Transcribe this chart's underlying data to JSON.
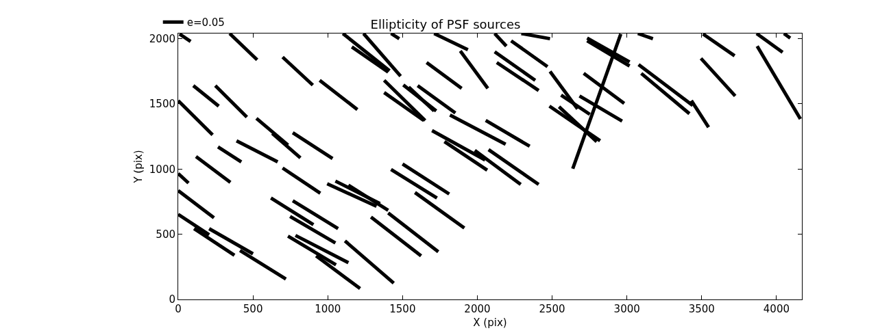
{
  "chart_data": {
    "type": "line",
    "title": "Ellipticity of PSF sources",
    "xlabel": "X (pix)",
    "ylabel": "Y (pix)",
    "xlim": [
      0,
      4170
    ],
    "ylim": [
      0,
      2040
    ],
    "xticks": [
      0,
      500,
      1000,
      1500,
      2000,
      2500,
      3000,
      3500,
      4000
    ],
    "yticks": [
      0,
      500,
      1000,
      1500,
      2000
    ],
    "legend": "top left",
    "marker": "none",
    "line_style": "solid",
    "series": [
      {
        "name": "e=0.05",
        "color": "#000000",
        "x": [
          9,
          83
        ],
        "values": [
          2036,
          1979
        ]
      },
      {
        "color": "#000000",
        "x": [
          344,
          528
        ],
        "values": [
          2040,
          1838
        ]
      },
      {
        "color": "#000000",
        "x": [
          698,
          900
        ],
        "values": [
          1859,
          1644
        ]
      },
      {
        "color": "#000000",
        "x": [
          946,
          1198
        ],
        "values": [
          1681,
          1457
        ]
      },
      {
        "color": "#000000",
        "x": [
          101,
          271
        ],
        "values": [
          1640,
          1483
        ]
      },
      {
        "color": "#000000",
        "x": [
          248,
          459
        ],
        "values": [
          1640,
          1399
        ]
      },
      {
        "color": "#000000",
        "x": [
          0,
          230
        ],
        "values": [
          1525,
          1263
        ]
      },
      {
        "color": "#000000",
        "x": [
          523,
          734
        ],
        "values": [
          1389,
          1185
        ]
      },
      {
        "color": "#000000",
        "x": [
          629,
          817
        ],
        "values": [
          1274,
          1086
        ]
      },
      {
        "color": "#000000",
        "x": [
          766,
          1032
        ],
        "values": [
          1279,
          1081
        ]
      },
      {
        "color": "#000000",
        "x": [
          390,
          665
        ],
        "values": [
          1217,
          1055
        ]
      },
      {
        "color": "#000000",
        "x": [
          266,
          422
        ],
        "values": [
          1170,
          1055
        ]
      },
      {
        "color": "#000000",
        "x": [
          119,
          349
        ],
        "values": [
          1096,
          898
        ]
      },
      {
        "color": "#000000",
        "x": [
          0,
          69
        ],
        "values": [
          966,
          893
        ]
      },
      {
        "color": "#000000",
        "x": [
          698,
          950
        ],
        "values": [
          1008,
          815
        ]
      },
      {
        "color": "#000000",
        "x": [
          0,
          239
        ],
        "values": [
          835,
          627
        ]
      },
      {
        "color": "#000000",
        "x": [
          0,
          207
        ],
        "values": [
          653,
          496
        ]
      },
      {
        "color": "#000000",
        "x": [
          106,
          376
        ],
        "values": [
          543,
          339
        ]
      },
      {
        "color": "#000000",
        "x": [
          207,
          500
        ],
        "values": [
          543,
          350
        ]
      },
      {
        "color": "#000000",
        "x": [
          413,
          720
        ],
        "values": [
          376,
          157
        ]
      },
      {
        "color": "#000000",
        "x": [
          620,
          904
        ],
        "values": [
          778,
          574
        ]
      },
      {
        "color": "#000000",
        "x": [
          766,
          1069
        ],
        "values": [
          757,
          543
        ]
      },
      {
        "color": "#000000",
        "x": [
          748,
          1051
        ],
        "values": [
          637,
          433
        ]
      },
      {
        "color": "#000000",
        "x": [
          734,
          1055
        ],
        "values": [
          486,
          266
        ]
      },
      {
        "color": "#000000",
        "x": [
          784,
          1138
        ],
        "values": [
          491,
          282
        ]
      },
      {
        "color": "#000000",
        "x": [
          922,
          1216
        ],
        "values": [
          334,
          84
        ]
      },
      {
        "color": "#000000",
        "x": [
          1115,
          1441
        ],
        "values": [
          449,
          125
        ]
      },
      {
        "color": "#000000",
        "x": [
          1051,
          1349
        ],
        "values": [
          908,
          736
        ]
      },
      {
        "color": "#000000",
        "x": [
          996,
          1326
        ],
        "values": [
          888,
          715
        ]
      },
      {
        "color": "#000000",
        "x": [
          1138,
          1404
        ],
        "values": [
          877,
          684
        ]
      },
      {
        "color": "#000000",
        "x": [
          1289,
          1624
        ],
        "values": [
          632,
          334
        ]
      },
      {
        "color": "#000000",
        "x": [
          1404,
          1739
        ],
        "values": [
          663,
          366
        ]
      },
      {
        "color": "#000000",
        "x": [
          1423,
          1730
        ],
        "values": [
          997,
          778
        ]
      },
      {
        "color": "#000000",
        "x": [
          1500,
          1812
        ],
        "values": [
          1039,
          809
        ]
      },
      {
        "color": "#000000",
        "x": [
          1583,
          1913
        ],
        "values": [
          820,
          548
        ]
      },
      {
        "color": "#000000",
        "x": [
          1101,
          1413
        ],
        "values": [
          2040,
          1754
        ]
      },
      {
        "color": "#000000",
        "x": [
          1161,
          1404
        ],
        "values": [
          1937,
          1744
        ]
      },
      {
        "color": "#000000",
        "x": [
          1239,
          1487
        ],
        "values": [
          2040,
          1713
        ]
      },
      {
        "color": "#000000",
        "x": [
          1377,
          1651
        ],
        "values": [
          1681,
          1373
        ]
      },
      {
        "color": "#000000",
        "x": [
          1377,
          1642
        ],
        "values": [
          1587,
          1373
        ]
      },
      {
        "color": "#000000",
        "x": [
          1505,
          1725
        ],
        "values": [
          1645,
          1446
        ]
      },
      {
        "color": "#000000",
        "x": [
          1541,
          1711
        ],
        "values": [
          1629,
          1446
        ]
      },
      {
        "color": "#000000",
        "x": [
          1601,
          1853
        ],
        "values": [
          1640,
          1430
        ]
      },
      {
        "color": "#000000",
        "x": [
          1423,
          1478
        ],
        "values": [
          2040,
          2000
        ]
      },
      {
        "color": "#000000",
        "x": [
          1661,
          1895
        ],
        "values": [
          1817,
          1619
        ]
      },
      {
        "color": "#000000",
        "x": [
          1711,
          1937
        ],
        "values": [
          2040,
          1916
        ]
      },
      {
        "color": "#000000",
        "x": [
          1886,
          2070
        ],
        "values": [
          1906,
          1619
        ]
      },
      {
        "color": "#000000",
        "x": [
          1697,
          2052
        ],
        "values": [
          1295,
          1070
        ]
      },
      {
        "color": "#000000",
        "x": [
          1817,
          2189
        ],
        "values": [
          1415,
          1190
        ]
      },
      {
        "color": "#000000",
        "x": [
          1780,
          2066
        ],
        "values": [
          1211,
          992
        ]
      },
      {
        "color": "#000000",
        "x": [
          1983,
          2290
        ],
        "values": [
          1143,
          882
        ]
      },
      {
        "color": "#000000",
        "x": [
          2056,
          2350
        ],
        "values": [
          1373,
          1175
        ]
      },
      {
        "color": "#000000",
        "x": [
          2075,
          2410
        ],
        "values": [
          1149,
          882
        ]
      },
      {
        "color": "#000000",
        "x": [
          2116,
          2194
        ],
        "values": [
          2040,
          1943
        ]
      },
      {
        "color": "#000000",
        "x": [
          2116,
          2387
        ],
        "values": [
          1900,
          1681
        ]
      },
      {
        "color": "#000000",
        "x": [
          2130,
          2410
        ],
        "values": [
          1817,
          1603
        ]
      },
      {
        "color": "#000000",
        "x": [
          2226,
          2469
        ],
        "values": [
          1984,
          1786
        ]
      },
      {
        "color": "#000000",
        "x": [
          2294,
          2486
        ],
        "values": [
          2040,
          2000
        ]
      },
      {
        "color": "#000000",
        "x": [
          2486,
          2670
        ],
        "values": [
          1749,
          1462
        ]
      },
      {
        "color": "#000000",
        "x": [
          2546,
          2798
        ],
        "values": [
          1478,
          1211
        ]
      },
      {
        "color": "#000000",
        "x": [
          2482,
          2821
        ],
        "values": [
          1483,
          1217
        ]
      },
      {
        "color": "#000000",
        "x": [
          2560,
          2752
        ],
        "values": [
          1567,
          1420
        ]
      },
      {
        "color": "#000000",
        "x": [
          2711,
          2982
        ],
        "values": [
          1734,
          1504
        ]
      },
      {
        "color": "#000000",
        "x": [
          2683,
          2968
        ],
        "values": [
          1561,
          1368
        ]
      },
      {
        "color": "#000000",
        "x": [
          2734,
          3018
        ],
        "values": [
          1984,
          1791
        ]
      },
      {
        "color": "#000000",
        "x": [
          2734,
          3018
        ],
        "values": [
          2005,
          1822
        ]
      },
      {
        "color": "#000000",
        "x": [
          2638,
          2959
        ],
        "values": [
          1003,
          2036
        ]
      },
      {
        "color": "#000000",
        "x": [
          3073,
          3174
        ],
        "values": [
          2040,
          2000
        ]
      },
      {
        "color": "#000000",
        "x": [
          3078,
          3440
        ],
        "values": [
          1801,
          1488
        ]
      },
      {
        "color": "#000000",
        "x": [
          3096,
          3418
        ],
        "values": [
          1734,
          1425
        ]
      },
      {
        "color": "#000000",
        "x": [
          3431,
          3546
        ],
        "values": [
          1525,
          1321
        ]
      },
      {
        "color": "#000000",
        "x": [
          3495,
          3724
        ],
        "values": [
          1849,
          1561
        ]
      },
      {
        "color": "#000000",
        "x": [
          3509,
          3720
        ],
        "values": [
          2036,
          1869
        ]
      },
      {
        "color": "#000000",
        "x": [
          3871,
          4160
        ],
        "values": [
          1943,
          1384
        ]
      },
      {
        "color": "#000000",
        "x": [
          3867,
          4041
        ],
        "values": [
          2040,
          1896
        ]
      },
      {
        "color": "#000000",
        "x": [
          4050,
          4092
        ],
        "values": [
          2040,
          2005
        ]
      }
    ]
  }
}
